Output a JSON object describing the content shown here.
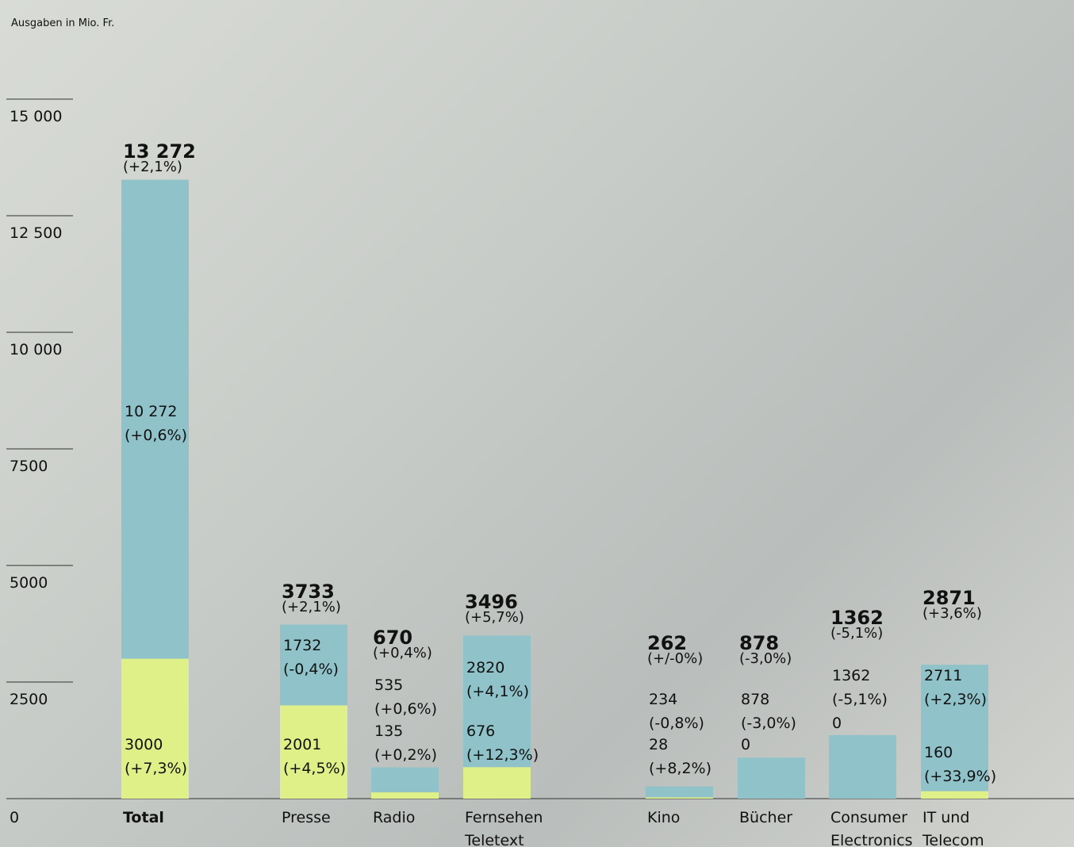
{
  "chart_data": {
    "type": "stacked_bar",
    "ylabel": "Ausgaben in Mio. Fr.",
    "categories": [
      "Total",
      "Presse",
      "Radio",
      "Fernsehen\nTeletext",
      "Kino",
      "Bücher",
      "Consumer\nElectronics",
      "IT und\nTelecom"
    ],
    "series": [
      {
        "color": "#dff088",
        "values": [
          3000,
          2001,
          135,
          676,
          28,
          0,
          0,
          160
        ],
        "value_labels": [
          "3000",
          "2001",
          "135",
          "676",
          "28",
          "0",
          "0",
          "160"
        ],
        "changes": [
          "(+7,3%)",
          "(+4,5%)",
          "(+0,2%)",
          "(+12,3%)",
          "(+8,2%)",
          null,
          null,
          "(+33,9%)"
        ]
      },
      {
        "color": "#8fc3c9",
        "values": [
          10272,
          1732,
          535,
          2820,
          234,
          878,
          1362,
          2711
        ],
        "value_labels": [
          "10 272",
          "1732",
          "535",
          "2820",
          "234",
          "878",
          "1362",
          "2711"
        ],
        "changes": [
          "(+0,6%)",
          "(-0,4%)",
          "(+0,6%)",
          "(+4,1%)",
          "(-0,8%)",
          "(-3,0%)",
          "(-5,1%)",
          "(+2,3%)"
        ]
      }
    ],
    "total_labels": [
      "13 272",
      "3733",
      "670",
      "3496",
      "262",
      "878",
      "1362",
      "2871"
    ],
    "total_changes": [
      "(+2,1%)",
      "(+2,1%)",
      "(+0,4%)",
      "(+5,7%)",
      "(+/-0%)",
      "(-3,0%)",
      "(-5,1%)",
      "(+3,6%)"
    ],
    "ylim": [
      0,
      17000
    ],
    "yticks": [
      0,
      2500,
      5000,
      7500,
      {
        "value": 10000,
        "label": "10 000"
      },
      {
        "value": 12500,
        "label": "12 500"
      },
      {
        "value": 15000,
        "label": "15 000"
      }
    ]
  }
}
